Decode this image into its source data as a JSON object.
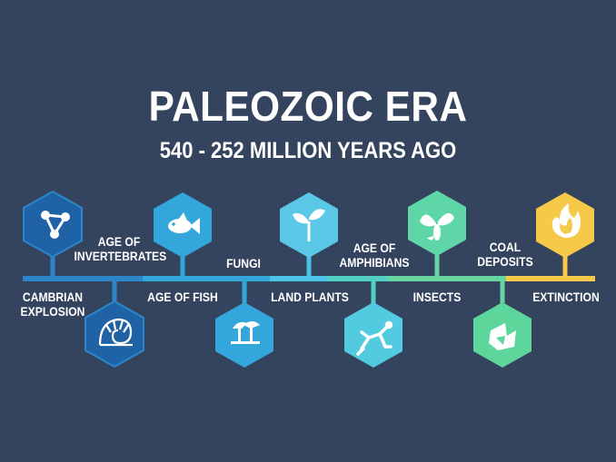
{
  "title": "PALEOZOIC ERA",
  "subtitle": "540 - 252 MILLION YEARS AGO",
  "colors": {
    "background": "#34445e",
    "line_segments": [
      "#2c86c9",
      "#33a6dc",
      "#4bc3e6",
      "#52d0c6",
      "#67d6a2",
      "#f7c948"
    ]
  },
  "events": [
    {
      "label_line1": "CAMBRIAN",
      "label_line2": "EXPLOSION",
      "icon": "trilobite-triangle-icon"
    },
    {
      "label_line1": "AGE OF",
      "label_line2": "INVERTEBRATES",
      "icon": "nautilus-shell-icon"
    },
    {
      "label_line1": "AGE OF FISH",
      "label_line2": "",
      "icon": "fish-icon"
    },
    {
      "label_line1": "FUNGI",
      "label_line2": "",
      "icon": "mushroom-icon"
    },
    {
      "label_line1": "LAND PLANTS",
      "label_line2": "",
      "icon": "sprout-icon"
    },
    {
      "label_line1": "AGE OF",
      "label_line2": "AMPHIBIANS",
      "icon": "amphibian-icon"
    },
    {
      "label_line1": "INSECTS",
      "label_line2": "",
      "icon": "insect-icon"
    },
    {
      "label_line1": "COAL",
      "label_line2": "DEPOSITS",
      "icon": "coal-rock-icon"
    },
    {
      "label_line1": "EXTINCTION",
      "label_line2": "",
      "icon": "fire-icon"
    }
  ]
}
